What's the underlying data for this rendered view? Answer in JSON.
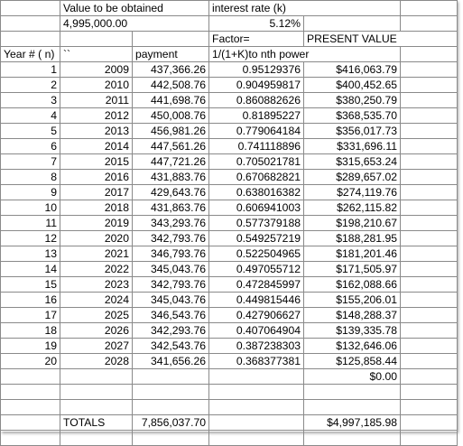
{
  "header": {
    "value_label": "Value to be obtained",
    "value_amount": "4,995,000.00",
    "interest_label": "interest rate (k)",
    "interest_value": "5.12%",
    "factor_label": "Factor=",
    "present_value_label": "PRESENT VALUE",
    "year_label": "Year # ( n)",
    "backticks": "``",
    "payment_label": "payment",
    "factor_formula": "1/(1+K)to nth power"
  },
  "rows": [
    {
      "n": "1",
      "year": "2009",
      "payment": "437,366.26",
      "factor": "0.95129376",
      "pv": "$416,063.79"
    },
    {
      "n": "2",
      "year": "2010",
      "payment": "442,508.76",
      "factor": "0.904959817",
      "pv": "$400,452.65"
    },
    {
      "n": "3",
      "year": "2011",
      "payment": "441,698.76",
      "factor": "0.860882626",
      "pv": "$380,250.79"
    },
    {
      "n": "4",
      "year": "2012",
      "payment": "450,008.76",
      "factor": "0.81895227",
      "pv": "$368,535.70"
    },
    {
      "n": "5",
      "year": "2013",
      "payment": "456,981.26",
      "factor": "0.779064184",
      "pv": "$356,017.73"
    },
    {
      "n": "6",
      "year": "2014",
      "payment": "447,561.26",
      "factor": "0.741118896",
      "pv": "$331,696.11"
    },
    {
      "n": "7",
      "year": "2015",
      "payment": "447,721.26",
      "factor": "0.705021781",
      "pv": "$315,653.24"
    },
    {
      "n": "8",
      "year": "2016",
      "payment": "431,883.76",
      "factor": "0.670682821",
      "pv": "$289,657.02"
    },
    {
      "n": "9",
      "year": "2017",
      "payment": "429,643.76",
      "factor": "0.638016382",
      "pv": "$274,119.76"
    },
    {
      "n": "10",
      "year": "2018",
      "payment": "431,863.76",
      "factor": "0.606941003",
      "pv": "$262,115.82"
    },
    {
      "n": "11",
      "year": "2019",
      "payment": "343,293.76",
      "factor": "0.577379188",
      "pv": "$198,210.67"
    },
    {
      "n": "12",
      "year": "2020",
      "payment": "342,793.76",
      "factor": "0.549257219",
      "pv": "$188,281.95"
    },
    {
      "n": "13",
      "year": "2021",
      "payment": "346,793.76",
      "factor": "0.522504965",
      "pv": "$181,201.46"
    },
    {
      "n": "14",
      "year": "2022",
      "payment": "345,043.76",
      "factor": "0.497055712",
      "pv": "$171,505.97"
    },
    {
      "n": "15",
      "year": "2023",
      "payment": "342,793.76",
      "factor": "0.472845997",
      "pv": "$162,088.66"
    },
    {
      "n": "16",
      "year": "2024",
      "payment": "345,043.76",
      "factor": "0.449815446",
      "pv": "$155,206.01"
    },
    {
      "n": "17",
      "year": "2025",
      "payment": "346,543.76",
      "factor": "0.427906627",
      "pv": "$148,288.37"
    },
    {
      "n": "18",
      "year": "2026",
      "payment": "342,293.76",
      "factor": "0.407064904",
      "pv": "$139,335.78"
    },
    {
      "n": "19",
      "year": "2027",
      "payment": "342,543.76",
      "factor": "0.387238303",
      "pv": "$132,646.06"
    },
    {
      "n": "20",
      "year": "2028",
      "payment": "341,656.26",
      "factor": "0.368377381",
      "pv": "$125,858.44"
    }
  ],
  "extra_pv": "$0.00",
  "totals": {
    "label": "TOTALS",
    "payment": "7,856,037.70",
    "pv": "$4,997,185.98"
  }
}
